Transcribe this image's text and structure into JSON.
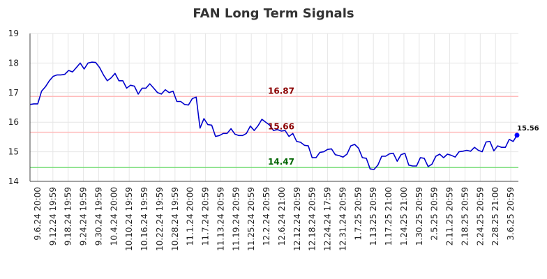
{
  "chart_data": {
    "type": "line",
    "title": "FAN Long Term Signals",
    "xlabel": "",
    "ylabel": "",
    "ylim": [
      14,
      19
    ],
    "yticks": [
      14,
      15,
      16,
      17,
      18,
      19
    ],
    "grid": true,
    "x_tick_labels": [
      "9.6.24 20:00",
      "9.12.24 19:59",
      "9.18.24 19:59",
      "9.24.24 19:59",
      "9.30.24 19:59",
      "10.4.24 20:00",
      "10.10.24 19:59",
      "10.16.24 19:59",
      "10.22.24 19:59",
      "10.28.24 19:59",
      "11.1.24 20:00",
      "11.7.24 20:59",
      "11.13.24 20:59",
      "11.19.24 20:59",
      "11.25.24 20:59",
      "12.2.24 20:59",
      "12.6.24 21:00",
      "12.12.24 20:59",
      "12.18.24 20:59",
      "12.24.24 17:59",
      "12.31.24 20:59",
      "1.7.25 20:59",
      "1.13.25 20:59",
      "1.17.25 21:00",
      "1.24.25 21:00",
      "1.30.25 20:59",
      "2.5.25 20:59",
      "2.11.25 20:59",
      "2.18.25 20:59",
      "2.24.25 20:59",
      "2.28.25 21:00",
      "3.6.25 20:59"
    ],
    "series": [
      {
        "color": "#0000cc",
        "values": [
          16.6,
          16.62,
          16.62,
          17.05,
          17.2,
          17.4,
          17.55,
          17.6,
          17.6,
          17.62,
          17.75,
          17.7,
          17.85,
          18.0,
          17.8,
          18.0,
          18.03,
          18.02,
          17.85,
          17.6,
          17.4,
          17.5,
          17.65,
          17.4,
          17.4,
          17.15,
          17.25,
          17.22,
          16.95,
          17.15,
          17.15,
          17.3,
          17.15,
          17.0,
          16.95,
          17.1,
          17.0,
          17.05,
          16.7,
          16.7,
          16.6,
          16.58,
          16.8,
          16.85,
          15.8,
          16.12,
          15.92,
          15.9,
          15.52,
          15.55,
          15.62,
          15.62,
          15.78,
          15.6,
          15.55,
          15.55,
          15.62,
          15.87,
          15.72,
          15.88,
          16.1,
          16.0,
          15.9,
          15.72,
          15.75,
          15.7,
          15.72,
          15.52,
          15.62,
          15.35,
          15.32,
          15.22,
          15.2,
          14.8,
          14.8,
          14.98,
          15.0,
          15.08,
          15.1,
          14.9,
          14.87,
          14.82,
          14.92,
          15.2,
          15.25,
          15.12,
          14.8,
          14.78,
          14.42,
          14.4,
          14.55,
          14.85,
          14.85,
          14.93,
          14.95,
          14.68,
          14.9,
          14.95,
          14.55,
          14.52,
          14.52,
          14.8,
          14.78,
          14.5,
          14.58,
          14.85,
          14.92,
          14.8,
          14.92,
          14.88,
          14.82,
          15.0,
          15.02,
          15.05,
          15.02,
          15.15,
          15.05,
          15.0,
          15.33,
          15.35,
          15.03,
          15.2,
          15.15,
          15.15,
          15.42,
          15.35,
          15.56
        ]
      }
    ],
    "levels": [
      {
        "value": 16.87,
        "label": "16.87",
        "line_color": "#ffbbbb",
        "label_color": "#8b0000"
      },
      {
        "value": 15.66,
        "label": "15.66",
        "line_color": "#ffbbbb",
        "label_color": "#8b0000"
      },
      {
        "value": 14.47,
        "label": "14.47",
        "line_color": "#77dd77",
        "label_color": "#006400"
      }
    ],
    "last_point": {
      "value": 15.56,
      "label": "15.56",
      "color": "#0000ff"
    }
  }
}
